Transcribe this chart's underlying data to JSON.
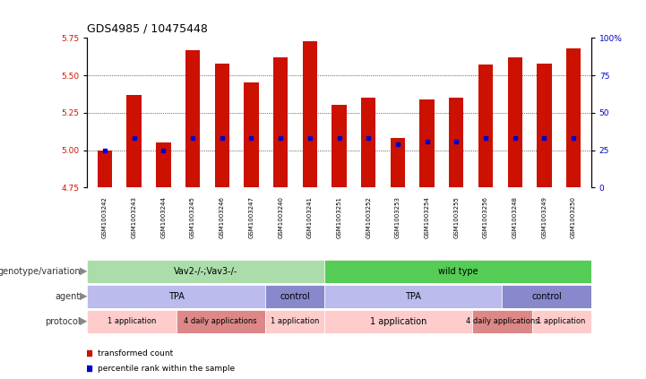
{
  "title": "GDS4985 / 10475448",
  "samples": [
    "GSM1003242",
    "GSM1003243",
    "GSM1003244",
    "GSM1003245",
    "GSM1003246",
    "GSM1003247",
    "GSM1003240",
    "GSM1003241",
    "GSM1003251",
    "GSM1003252",
    "GSM1003253",
    "GSM1003254",
    "GSM1003255",
    "GSM1003256",
    "GSM1003248",
    "GSM1003249",
    "GSM1003250"
  ],
  "bar_heights": [
    5.0,
    5.37,
    5.05,
    5.67,
    5.58,
    5.45,
    5.62,
    5.73,
    5.3,
    5.35,
    5.08,
    5.34,
    5.35,
    5.57,
    5.62,
    5.58,
    5.68
  ],
  "blue_dots": [
    5.0,
    5.08,
    5.0,
    5.08,
    5.08,
    5.08,
    5.08,
    5.08,
    5.08,
    5.08,
    5.04,
    5.06,
    5.06,
    5.08,
    5.08,
    5.08,
    5.08
  ],
  "ylim": [
    4.75,
    5.75
  ],
  "yticks_left": [
    4.75,
    5.0,
    5.25,
    5.5,
    5.75
  ],
  "yticks_right": [
    0,
    25,
    50,
    75,
    100
  ],
  "bar_color": "#CC1100",
  "dot_color": "#0000CC",
  "bg_color": "#ffffff",
  "genotype_groups": [
    {
      "label": "Vav2-/-;Vav3-/-",
      "start": 0,
      "end": 8,
      "color": "#AADDAA"
    },
    {
      "label": "wild type",
      "start": 8,
      "end": 17,
      "color": "#55CC55"
    }
  ],
  "agent_groups": [
    {
      "label": "TPA",
      "start": 0,
      "end": 6,
      "color": "#BBBBEE"
    },
    {
      "label": "control",
      "start": 6,
      "end": 8,
      "color": "#8888CC"
    },
    {
      "label": "TPA",
      "start": 8,
      "end": 14,
      "color": "#BBBBEE"
    },
    {
      "label": "control",
      "start": 14,
      "end": 17,
      "color": "#8888CC"
    }
  ],
  "protocol_groups": [
    {
      "label": "1 application",
      "start": 0,
      "end": 3,
      "color": "#FFCCCC"
    },
    {
      "label": "4 daily applications",
      "start": 3,
      "end": 6,
      "color": "#DD8888"
    },
    {
      "label": "1 application",
      "start": 6,
      "end": 8,
      "color": "#FFCCCC"
    },
    {
      "label": "1 application",
      "start": 8,
      "end": 13,
      "color": "#FFCCCC"
    },
    {
      "label": "4 daily applications",
      "start": 13,
      "end": 15,
      "color": "#DD8888"
    },
    {
      "label": "1 application",
      "start": 15,
      "end": 17,
      "color": "#FFCCCC"
    }
  ],
  "tick_fontsize": 6.5,
  "title_fontsize": 9,
  "annot_fontsize": 7,
  "row_labels": [
    "genotype/variation",
    "agent",
    "protocol"
  ],
  "legend_items": [
    {
      "color": "#CC1100",
      "label": "transformed count"
    },
    {
      "color": "#0000CC",
      "label": "percentile rank within the sample"
    }
  ]
}
